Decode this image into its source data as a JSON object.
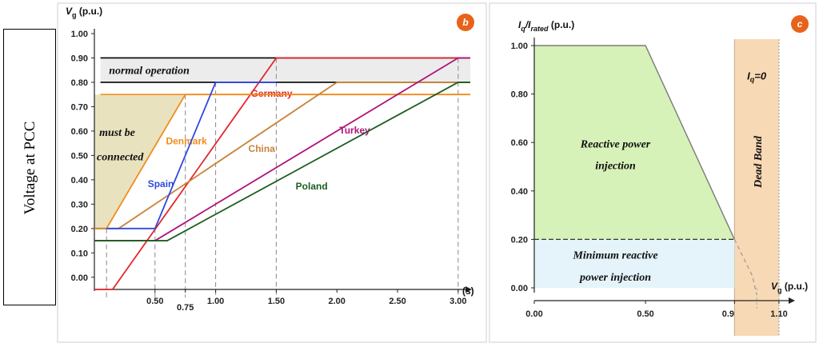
{
  "side_label": "Voltage at PCC",
  "chart_data": [
    {
      "type": "line",
      "badge": "b",
      "ylabel_main": "V",
      "ylabel_sub": "g",
      "ylabel_unit": "(p.u.)",
      "xlabel": "(s)",
      "ylim": [
        -0.05,
        1.0
      ],
      "xlim": [
        0.0,
        3.1
      ],
      "y_ticks": [
        "1.00",
        "0.90",
        "0.80",
        "0.70",
        "0.60",
        "0.50",
        "0.40",
        "0.30",
        "0.20",
        "0.10",
        "0.00"
      ],
      "y_tick_values": [
        1.0,
        0.9,
        0.8,
        0.7,
        0.6,
        0.5,
        0.4,
        0.3,
        0.2,
        0.1,
        0.0
      ],
      "x_ticks": [
        "0.50",
        "0.75",
        "1.00",
        "1.50",
        "2.00",
        "2.50",
        "3.00"
      ],
      "x_tick_values": [
        0.5,
        0.75,
        1.0,
        1.5,
        2.0,
        2.5,
        3.0
      ],
      "x_ticks_staggered": [
        "0.75"
      ],
      "normal_band": {
        "y0": 0.8,
        "y1": 0.9,
        "label": "normal operation"
      },
      "must_region": {
        "label_line1": "must be",
        "label_line2": "connected",
        "color": "#e8e2bf"
      },
      "dashed_x": [
        0.1,
        0.5,
        0.75,
        1.0,
        1.5,
        3.0
      ],
      "series": [
        {
          "name": "Germany",
          "color": "#e3262e",
          "x": [
            0.0,
            0.15,
            1.5,
            3.1
          ],
          "y": [
            -0.05,
            -0.05,
            0.9,
            0.9
          ],
          "label_x": 1.29,
          "label_y": 0.74
        },
        {
          "name": "Denmark",
          "color": "#f28c1e",
          "x": [
            0.0,
            0.1,
            0.75,
            3.1
          ],
          "y": [
            0.2,
            0.2,
            0.75,
            0.75
          ],
          "label_x": 0.59,
          "label_y": 0.545
        },
        {
          "name": "China",
          "color": "#c8843a",
          "x": [
            0.0,
            0.2,
            2.0,
            3.1
          ],
          "y": [
            0.2,
            0.2,
            0.8,
            0.8
          ],
          "label_x": 1.27,
          "label_y": 0.515
        },
        {
          "name": "Spain",
          "color": "#2f48e0",
          "x": [
            0.1,
            0.5,
            1.0,
            1.5
          ],
          "y": [
            0.2,
            0.2,
            0.8,
            0.8
          ],
          "label_x": 0.44,
          "label_y": 0.37
        },
        {
          "name": "Turkey",
          "color": "#b0147a",
          "x": [
            0.0,
            0.5,
            3.0,
            3.1
          ],
          "y": [
            0.15,
            0.15,
            0.9,
            0.9
          ],
          "label_x": 2.02,
          "label_y": 0.59
        },
        {
          "name": "Poland",
          "color": "#1b5e20",
          "x": [
            0.0,
            0.6,
            3.0,
            3.1
          ],
          "y": [
            0.15,
            0.15,
            0.8,
            0.8
          ],
          "label_x": 1.66,
          "label_y": 0.36
        }
      ],
      "ref_lines": [
        {
          "y": 0.9,
          "color": "#000000"
        },
        {
          "y": 0.8,
          "color": "#000000"
        },
        {
          "y": 0.75,
          "color": "#f28c1e"
        }
      ]
    },
    {
      "type": "line",
      "badge": "c",
      "ylabel_main": "I",
      "ylabel_sub1": "q",
      "ylabel_mid": "/I",
      "ylabel_sub2": "rated",
      "ylabel_unit": "(p.u.)",
      "xlabel_main": "V",
      "xlabel_sub": "g",
      "xlabel_unit": "(p.u.)",
      "ylim": [
        0.0,
        1.0
      ],
      "xlim": [
        0.0,
        1.1
      ],
      "y_ticks": [
        "1.00",
        "0.80",
        "0.60",
        "0.40",
        "0.20",
        "0.00"
      ],
      "y_tick_values": [
        1.0,
        0.8,
        0.6,
        0.4,
        0.2,
        0.0
      ],
      "x_ticks": [
        "0.00",
        "0.50",
        "0.9",
        "1.10"
      ],
      "x_tick_values": [
        0.0,
        0.5,
        0.9,
        1.1
      ],
      "curve_x": [
        0.0,
        0.5,
        0.9
      ],
      "curve_y": [
        1.0,
        1.0,
        0.2
      ],
      "min_level": 0.2,
      "dead_band": {
        "x0": 0.9,
        "x1": 1.1,
        "label": "Dead Band",
        "color": "#f8d9b5",
        "iq_label_main": "I",
        "iq_label_sub": "q",
        "iq_label_rest": "=0"
      },
      "tail_x": [
        0.9,
        0.98,
        1.0
      ],
      "tail_y": [
        0.2,
        0.05,
        -0.03
      ],
      "dashed_x": [
        1.0
      ],
      "green_label_line1": "Reactive power",
      "green_label_line2": "injection",
      "green_color": "#d7f2b8",
      "blue_label_line1": "Minimum reactive",
      "blue_label_line2": "power injection",
      "blue_color": "#e4f4fa"
    }
  ]
}
